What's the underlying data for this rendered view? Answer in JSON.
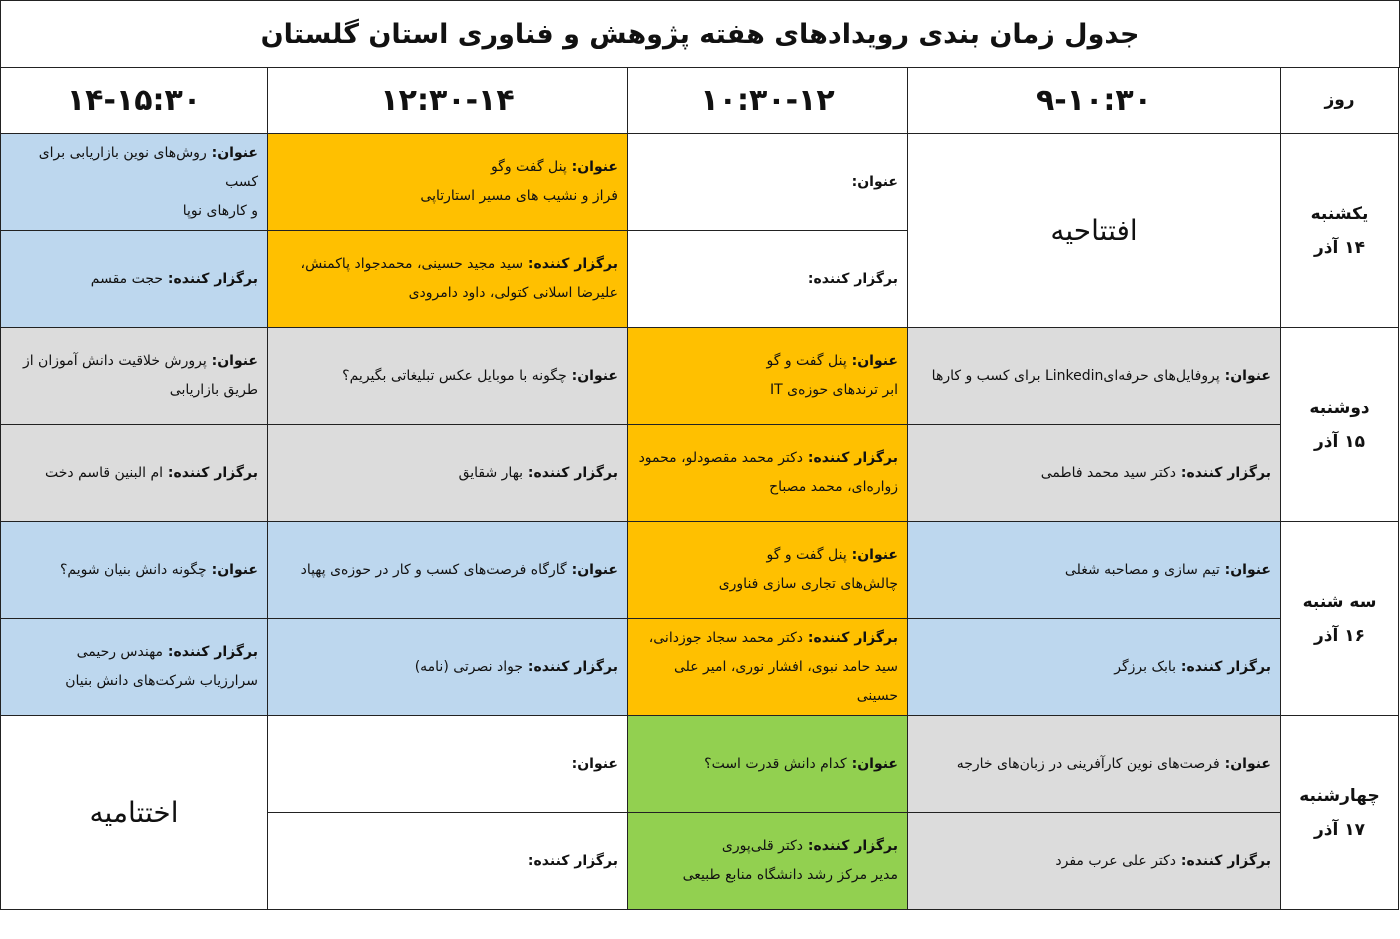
{
  "title": "جدول زمان بندی رویدادهای هفته پژوهش و فناوری استان گلستان",
  "header": {
    "day_label": "روز",
    "slots": [
      "۹-۱۰:۳۰",
      "۱۰:۳۰-۱۲",
      "۱۲:۳۰-۱۴",
      "۱۴-۱۵:۳۰"
    ]
  },
  "labels": {
    "title": "عنوان:",
    "organizer": "برگزار کننده:"
  },
  "colors": {
    "blue": "#BDD7EE",
    "orange": "#FFC000",
    "gray": "#DCDCDC",
    "green": "#92D050",
    "white": "#FFFFFF"
  },
  "days": [
    {
      "name": "یکشنبه",
      "date": "۱۴ آذر",
      "sessions": [
        {
          "special": "افتتاحیه",
          "color": "white"
        },
        {
          "color": "white",
          "title": [
            ""
          ],
          "organizer": [
            ""
          ]
        },
        {
          "color": "orange",
          "title": [
            "پنل گفت وگو",
            "فراز و نشیب های مسیر استارتاپی"
          ],
          "organizer": [
            "سید مجید حسینی، محمدجواد پاکمنش،",
            "علیرضا اسلانی کتولی، داود دامرودی"
          ]
        },
        {
          "color": "blue",
          "title": [
            "روش‌های نوین بازاریابی برای کسب",
            "و کارهای نوپا"
          ],
          "organizer": [
            "حجت مقسم"
          ]
        }
      ]
    },
    {
      "name": "دوشنبه",
      "date": "۱۵ آذر",
      "sessions": [
        {
          "color": "gray",
          "title": [
            "پروفایل‌های حرفه‌ایLinkedin  برای کسب و کارها"
          ],
          "organizer": [
            "دکتر سید محمد فاطمی"
          ]
        },
        {
          "color": "orange",
          "title": [
            "پنل گفت و گو",
            "ابر ترندهای حوزه‌ی IT"
          ],
          "organizer": [
            "دکتر محمد مقصودلو، محمود",
            "زواره‌ای، محمد مصباح"
          ]
        },
        {
          "color": "gray",
          "title": [
            "چگونه با موبایل عکس تبلیغاتی بگیریم؟"
          ],
          "organizer": [
            "بهار شقایق"
          ]
        },
        {
          "color": "gray",
          "title": [
            "پرورش خلاقیت دانش آموزان از",
            "طریق بازاریابی"
          ],
          "organizer": [
            "ام البنین قاسم دخت"
          ]
        }
      ]
    },
    {
      "name": "سه شنبه",
      "date": "۱۶ آذر",
      "sessions": [
        {
          "color": "blue",
          "title": [
            "تیم سازی و مصاحبه شغلی"
          ],
          "organizer": [
            "بابک برزگر"
          ]
        },
        {
          "color": "orange",
          "title": [
            "پنل گفت و گو",
            "چالش‌های تجاری سازی فناوری"
          ],
          "organizer": [
            "دکتر محمد سجاد جوزدانی،",
            "سید حامد نبوی، افشار نوری، امیر علی حسینی"
          ]
        },
        {
          "color": "blue",
          "title": [
            "گارگاه فرصت‌های کسب و کار در حوزه‌ی پهپاد"
          ],
          "organizer": [
            "جواد نصرتی (نامه)"
          ]
        },
        {
          "color": "blue",
          "title": [
            "چگونه دانش بنیان شویم؟"
          ],
          "organizer": [
            "مهندس رحیمی",
            "سرارزیاب شرکت‌های دانش بنیان"
          ]
        }
      ]
    },
    {
      "name": "چهارشنبه",
      "date": "۱۷ آذر",
      "sessions": [
        {
          "color": "gray",
          "title": [
            "فرصت‌های نوین کارآفرینی در زبان‌های خارجه"
          ],
          "organizer": [
            "دکتر علی عرب مفرد"
          ]
        },
        {
          "color": "green",
          "title": [
            "کدام دانش قدرت است؟"
          ],
          "organizer": [
            "دکتر قلی‌پوری",
            "مدیر مرکز رشد دانشگاه منابع طبیعی"
          ]
        },
        {
          "color": "white",
          "title": [
            ""
          ],
          "organizer": [
            ""
          ]
        },
        {
          "special": "اختتامیه",
          "color": "white"
        }
      ]
    }
  ]
}
